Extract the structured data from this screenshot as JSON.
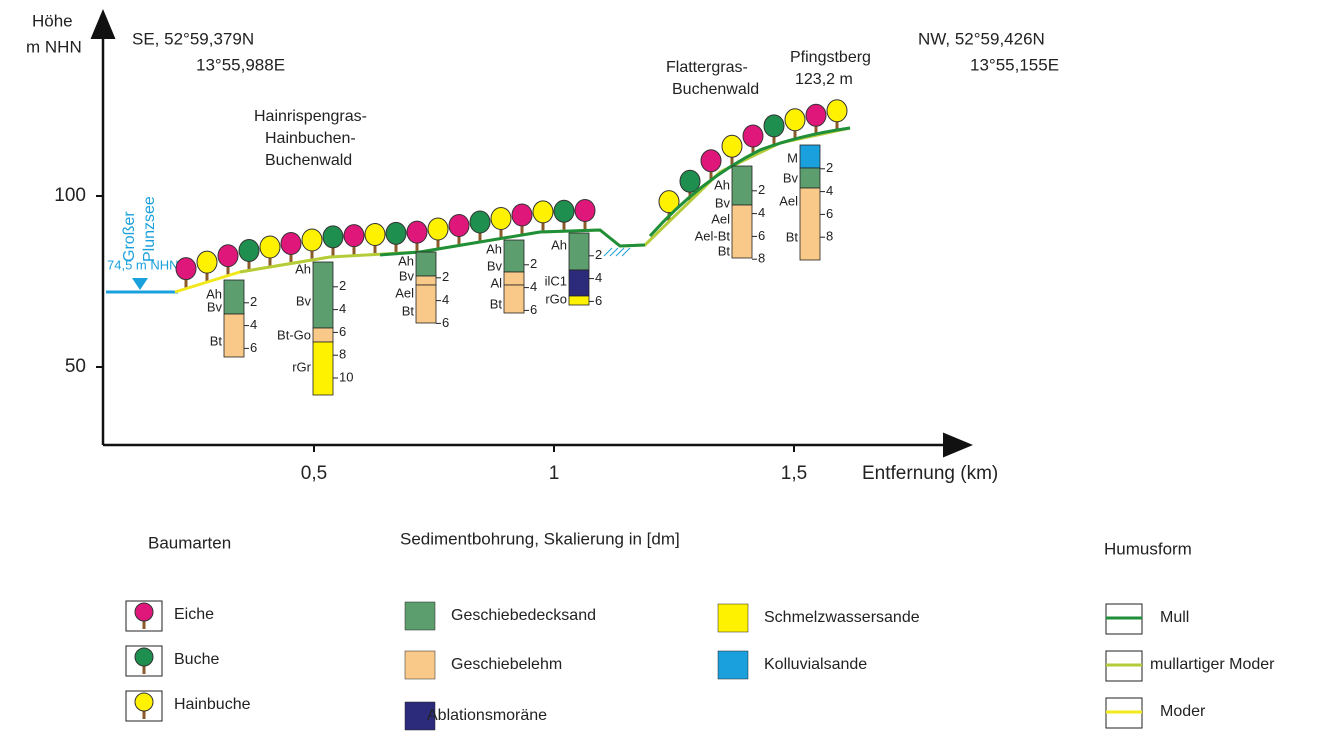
{
  "axes": {
    "y_label": [
      "Höhe",
      "m NHN"
    ],
    "x_label": "Entfernung (km)",
    "yticks": [
      50,
      100
    ],
    "xticks": [
      {
        "value": 0.5,
        "label": "0,5"
      },
      {
        "value": 1,
        "label": "1"
      },
      {
        "value": 1.5,
        "label": "1,5"
      }
    ]
  },
  "annotations": {
    "se": [
      "SE, 52°59,379N",
      "13°55,988E"
    ],
    "nw": [
      "NW, 52°59,426N",
      "13°55,155E"
    ],
    "forest1": [
      "Hainrispengras-",
      "Hainbuchen-",
      "Buchenwald"
    ],
    "forest2": [
      "Flattergras-",
      "Buchenwald"
    ],
    "peak": [
      "Pfingstberg",
      "123,2 m"
    ],
    "lake": [
      "Großer",
      "Plunzsee"
    ],
    "water_level": "74,5 m NHN"
  },
  "boreholes": [
    {
      "horizons": [
        "Ah",
        "Bv",
        "Bt"
      ],
      "depth_ticks": [
        2,
        4,
        6
      ]
    },
    {
      "horizons": [
        "Ah",
        "Bv",
        "Bt-Go",
        "rGr"
      ],
      "depth_ticks": [
        2,
        4,
        6,
        8,
        10
      ]
    },
    {
      "horizons": [
        "Ah",
        "Bv",
        "Ael",
        "Bt"
      ],
      "depth_ticks": [
        2,
        4,
        6
      ]
    },
    {
      "horizons": [
        "Ah",
        "Bv",
        "Al",
        "Bt"
      ],
      "depth_ticks": [
        2,
        4,
        6
      ]
    },
    {
      "horizons": [
        "Ah",
        "ilC1",
        "rGo"
      ],
      "depth_ticks": [
        2,
        4,
        6
      ]
    },
    {
      "horizons": [
        "Ah",
        "Bv",
        "Ael",
        "Ael-Bt",
        "Bt"
      ],
      "depth_ticks": [
        2,
        4,
        6,
        8
      ]
    },
    {
      "horizons": [
        "M",
        "Bv",
        "Ael",
        "Bt"
      ],
      "depth_ticks": [
        2,
        4,
        6,
        8
      ]
    }
  ],
  "legend": {
    "trees": {
      "title": "Baumarten",
      "items": [
        {
          "label": "Eiche",
          "color": "#e0177a"
        },
        {
          "label": "Buche",
          "color": "#1e8f4e"
        },
        {
          "label": "Hainbuche",
          "color": "#fff200"
        }
      ]
    },
    "sediments": {
      "title": "Sedimentbohrung, Skalierung in [dm]",
      "items": [
        {
          "label": "Geschiebedecksand",
          "color": "#5d9e6e"
        },
        {
          "label": "Geschiebelehm",
          "color": "#f9c98a"
        },
        {
          "label": "Ablationsmoräne",
          "color": "#2c2a7a"
        },
        {
          "label": "Schmelzwassersande",
          "color": "#fff200"
        },
        {
          "label": "Kolluvialsande",
          "color": "#1aa0dc"
        }
      ]
    },
    "humus": {
      "title": "Humusform",
      "items": [
        {
          "label": "Mull",
          "color": "#1f8f3a"
        },
        {
          "label": "mullartiger Moder",
          "color": "#b5cc3a"
        },
        {
          "label": "Moder",
          "color": "#f2e81c"
        }
      ]
    }
  }
}
